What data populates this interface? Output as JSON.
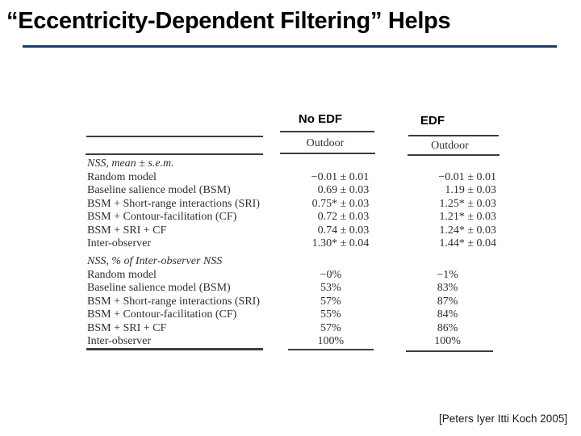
{
  "slide": {
    "title": "“Eccentricity-Dependent Filtering” Helps",
    "citation": "[Peters Iyer Itti Koch 2005]"
  },
  "colors": {
    "title_underline": "#1c3a66",
    "table_text": "#2f2f2f",
    "title_text": "#000000"
  },
  "table": {
    "group_headers": [
      "No EDF",
      "EDF"
    ],
    "subheaders": [
      "Outdoor",
      "Outdoor"
    ],
    "sections": [
      {
        "label": "NSS, mean ± s.e.m.",
        "align": "right",
        "rows": [
          {
            "label": "Random model",
            "no_edf": "−0.01 ± 0.01",
            "edf": "−0.01 ± 0.01"
          },
          {
            "label": "Baseline salience model (BSM)",
            "no_edf": "0.69 ± 0.03",
            "edf": "1.19 ± 0.03"
          },
          {
            "label": "BSM + Short-range interactions (SRI)",
            "no_edf": "0.75* ± 0.03",
            "edf": "1.25* ± 0.03"
          },
          {
            "label": "BSM + Contour-facilitation (CF)",
            "no_edf": "0.72 ± 0.03",
            "edf": "1.21* ± 0.03"
          },
          {
            "label": "BSM + SRI + CF",
            "no_edf": "0.74 ± 0.03",
            "edf": "1.24* ± 0.03"
          },
          {
            "label": "Inter-observer",
            "no_edf": "1.30* ± 0.04",
            "edf": "1.44* ± 0.04"
          }
        ]
      },
      {
        "label": "NSS, % of Inter-observer NSS",
        "align": "center",
        "rows": [
          {
            "label": "Random model",
            "no_edf": "−0%",
            "edf": "−1%"
          },
          {
            "label": "Baseline salience model (BSM)",
            "no_edf": "53%",
            "edf": "83%"
          },
          {
            "label": "BSM + Short-range interactions (SRI)",
            "no_edf": "57%",
            "edf": "87%"
          },
          {
            "label": "BSM + Contour-facilitation (CF)",
            "no_edf": "55%",
            "edf": "84%"
          },
          {
            "label": "BSM + SRI + CF",
            "no_edf": "57%",
            "edf": "86%"
          },
          {
            "label": "Inter-observer",
            "no_edf": "100%",
            "edf": "100%"
          }
        ]
      }
    ]
  }
}
